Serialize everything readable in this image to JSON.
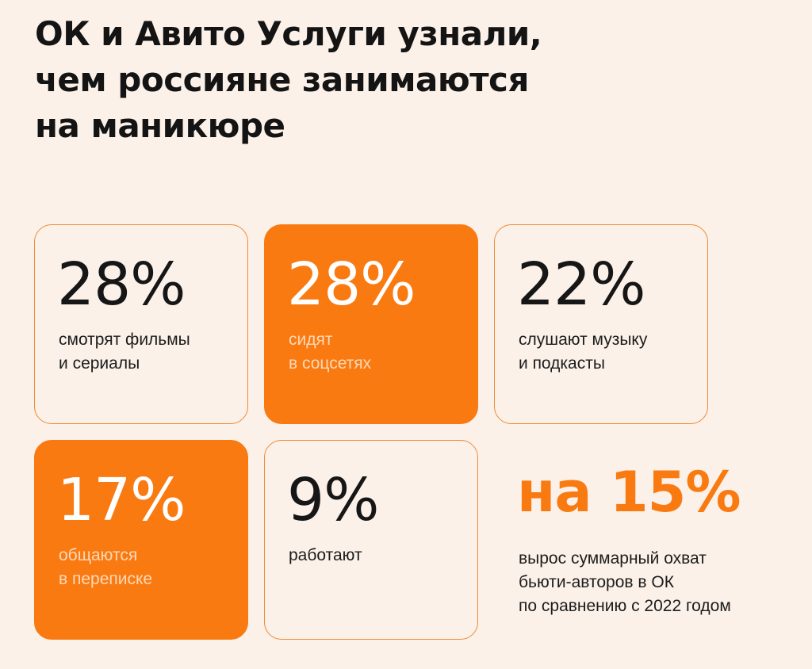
{
  "title": {
    "lines": [
      "ОК и Авито Услуги узнали,",
      "чем россияне занимаются",
      "на маникюре"
    ]
  },
  "cards": [
    {
      "value": "28%",
      "desc": [
        "смотрят фильмы",
        "и сериалы"
      ],
      "style": "outline"
    },
    {
      "value": "28%",
      "desc": [
        "сидят",
        "в соцсетях"
      ],
      "style": "filled"
    },
    {
      "value": "22%",
      "desc": [
        "слушают музыку",
        "и подкасты"
      ],
      "style": "outline"
    },
    {
      "value": "17%",
      "desc": [
        "общаются",
        "в переписке"
      ],
      "style": "filled"
    },
    {
      "value": "9%",
      "desc": [
        "работают"
      ],
      "style": "outline"
    }
  ],
  "highlight": {
    "value": "на 15%",
    "desc": [
      "вырос суммарный охват",
      "бьюти-авторов в ОК",
      "по сравнению с 2022 годом"
    ]
  },
  "colors": {
    "background": "#fbf1e9",
    "accent": "#fa7a12",
    "text": "#141414"
  }
}
